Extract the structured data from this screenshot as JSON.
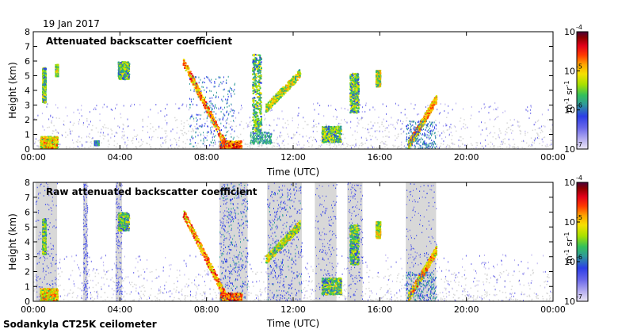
{
  "date_label": "19 Jan 2017",
  "footer_label": "Sodankyla CT25K ceilometer",
  "colors": {
    "frame": "#000000",
    "background": "#ffffff",
    "noise": "#d8d8d8",
    "colormap": [
      "#ebe6f5",
      "#b8b0f0",
      "#6a68ea",
      "#2c3ee6",
      "#2f9a9a",
      "#33c05a",
      "#a8e000",
      "#f5e000",
      "#ffa500",
      "#ff3a00",
      "#e2001a",
      "#8a0000",
      "#4a003a"
    ]
  },
  "chart_data": [
    {
      "type": "heatmap",
      "title": "Attenuated backscatter coefficient",
      "xlabel": "Time (UTC)",
      "ylabel": "Height (km)",
      "xlim": [
        0,
        24
      ],
      "ylim": [
        0,
        8
      ],
      "x_tick_labels": [
        "00:00",
        "04:00",
        "08:00",
        "12:00",
        "16:00",
        "20:00",
        "00:00"
      ],
      "y_tick_labels": [
        "0",
        "1",
        "2",
        "3",
        "4",
        "5",
        "6",
        "7",
        "8"
      ],
      "colorbar": {
        "scale": "log",
        "range": [
          1e-07,
          0.0001
        ],
        "tick_labels": [
          "10",
          "10",
          "10",
          "10"
        ],
        "tick_exponents": [
          "-7",
          "-6",
          "-5",
          "-4"
        ],
        "unit": "m",
        "unit_exp1": "-1",
        "unit_mid": "sr",
        "unit_exp2": "-1"
      },
      "features": [
        {
          "kind": "layer",
          "t0": 0.3,
          "t1": 1.1,
          "h0": 0.1,
          "h1": 0.9,
          "level": 0.75
        },
        {
          "kind": "layer",
          "t0": 2.8,
          "t1": 3.0,
          "h0": 0.3,
          "h1": 0.6,
          "level": 0.5
        },
        {
          "kind": "layer",
          "t0": 0.4,
          "t1": 0.55,
          "h0": 3.2,
          "h1": 5.6,
          "level": 0.6
        },
        {
          "kind": "layer",
          "t0": 1.0,
          "t1": 1.12,
          "h0": 5.0,
          "h1": 5.8,
          "level": 0.65
        },
        {
          "kind": "layer",
          "t0": 3.9,
          "t1": 4.4,
          "h0": 4.8,
          "h1": 6.0,
          "level": 0.6
        },
        {
          "kind": "slope",
          "t0": 6.9,
          "t1": 8.9,
          "h0": 6.0,
          "h1": 0.2,
          "level": 0.85
        },
        {
          "kind": "layer",
          "t0": 8.6,
          "t1": 9.6,
          "h0": 0.0,
          "h1": 0.6,
          "level": 0.9
        },
        {
          "kind": "blob",
          "t0": 7.2,
          "t1": 9.3,
          "h0": 0.2,
          "h1": 5.0,
          "level": 0.3
        },
        {
          "kind": "layer",
          "t0": 10.1,
          "t1": 10.5,
          "h0": 1.2,
          "h1": 6.5,
          "level": 0.6
        },
        {
          "kind": "slope",
          "t0": 10.7,
          "t1": 12.3,
          "h0": 2.8,
          "h1": 5.2,
          "level": 0.7
        },
        {
          "kind": "blob",
          "t0": 10.0,
          "t1": 11.0,
          "h0": 0.4,
          "h1": 1.2,
          "level": 0.35
        },
        {
          "kind": "layer",
          "t0": 13.3,
          "t1": 14.2,
          "h0": 0.5,
          "h1": 1.6,
          "level": 0.6
        },
        {
          "kind": "layer",
          "t0": 14.6,
          "t1": 15.0,
          "h0": 2.5,
          "h1": 5.2,
          "level": 0.6
        },
        {
          "kind": "layer",
          "t0": 15.8,
          "t1": 16.0,
          "h0": 4.3,
          "h1": 5.4,
          "level": 0.7
        },
        {
          "kind": "slope",
          "t0": 17.3,
          "t1": 18.6,
          "h0": 0.3,
          "h1": 3.5,
          "level": 0.8
        },
        {
          "kind": "blob",
          "t0": 17.2,
          "t1": 18.6,
          "h0": 0.0,
          "h1": 2.0,
          "level": 0.3
        }
      ]
    },
    {
      "type": "heatmap",
      "title": "Raw attenuated backscatter coefficient",
      "xlabel": "Time (UTC)",
      "ylabel": "Height (km)",
      "xlim": [
        0,
        24
      ],
      "ylim": [
        0,
        8
      ],
      "x_tick_labels": [
        "00:00",
        "04:00",
        "08:00",
        "12:00",
        "16:00",
        "20:00",
        "00:00"
      ],
      "y_tick_labels": [
        "0",
        "1",
        "2",
        "3",
        "4",
        "5",
        "6",
        "7",
        "8"
      ],
      "colorbar": {
        "scale": "log",
        "range": [
          1e-07,
          0.0001
        ],
        "tick_labels": [
          "10",
          "10",
          "10",
          "10"
        ],
        "tick_exponents": [
          "-7",
          "-6",
          "-5",
          "-4"
        ],
        "unit": "m",
        "unit_exp1": "-1",
        "unit_mid": "sr",
        "unit_exp2": "-1"
      },
      "noise_bands": [
        {
          "t0": 0.1,
          "t1": 1.1
        },
        {
          "t0": 2.3,
          "t1": 2.5
        },
        {
          "t0": 3.8,
          "t1": 4.1
        },
        {
          "t0": 8.6,
          "t1": 9.9
        },
        {
          "t0": 10.8,
          "t1": 12.4
        },
        {
          "t0": 13.0,
          "t1": 14.0
        },
        {
          "t0": 14.5,
          "t1": 15.2
        },
        {
          "t0": 17.2,
          "t1": 18.6
        }
      ],
      "features": [
        {
          "kind": "layer",
          "t0": 0.3,
          "t1": 1.1,
          "h0": 0.1,
          "h1": 0.9,
          "level": 0.75
        },
        {
          "kind": "layer",
          "t0": 0.4,
          "t1": 0.55,
          "h0": 3.2,
          "h1": 5.6,
          "level": 0.6
        },
        {
          "kind": "layer",
          "t0": 3.9,
          "t1": 4.4,
          "h0": 4.8,
          "h1": 6.0,
          "level": 0.6
        },
        {
          "kind": "slope",
          "t0": 6.9,
          "t1": 8.9,
          "h0": 6.0,
          "h1": 0.2,
          "level": 0.85
        },
        {
          "kind": "layer",
          "t0": 8.6,
          "t1": 9.6,
          "h0": 0.0,
          "h1": 0.6,
          "level": 0.9
        },
        {
          "kind": "blob",
          "t0": 8.6,
          "t1": 9.9,
          "h0": 0.0,
          "h1": 8.0,
          "level": 0.28
        },
        {
          "kind": "slope",
          "t0": 10.7,
          "t1": 12.3,
          "h0": 2.8,
          "h1": 5.2,
          "level": 0.7
        },
        {
          "kind": "blob",
          "t0": 10.8,
          "t1": 12.4,
          "h0": 0.0,
          "h1": 8.0,
          "level": 0.25
        },
        {
          "kind": "layer",
          "t0": 13.3,
          "t1": 14.2,
          "h0": 0.5,
          "h1": 1.6,
          "level": 0.6
        },
        {
          "kind": "layer",
          "t0": 14.6,
          "t1": 15.0,
          "h0": 2.5,
          "h1": 5.2,
          "level": 0.6
        },
        {
          "kind": "layer",
          "t0": 15.8,
          "t1": 16.0,
          "h0": 4.3,
          "h1": 5.4,
          "level": 0.7
        },
        {
          "kind": "slope",
          "t0": 17.3,
          "t1": 18.6,
          "h0": 0.3,
          "h1": 3.5,
          "level": 0.8
        },
        {
          "kind": "blob",
          "t0": 17.2,
          "t1": 18.6,
          "h0": 0.0,
          "h1": 2.0,
          "level": 0.3
        }
      ]
    }
  ]
}
